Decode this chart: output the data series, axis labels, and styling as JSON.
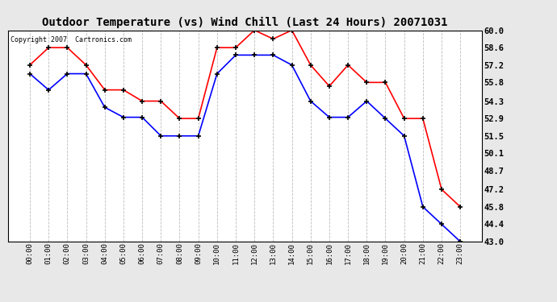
{
  "title": "Outdoor Temperature (vs) Wind Chill (Last 24 Hours) 20071031",
  "copyright_text": "Copyright 2007  Cartronics.com",
  "hours": [
    "00:00",
    "01:00",
    "02:00",
    "03:00",
    "04:00",
    "05:00",
    "06:00",
    "07:00",
    "08:00",
    "09:00",
    "10:00",
    "11:00",
    "12:00",
    "13:00",
    "14:00",
    "15:00",
    "16:00",
    "17:00",
    "18:00",
    "19:00",
    "20:00",
    "21:00",
    "22:00",
    "23:00"
  ],
  "outdoor_temp": [
    56.5,
    55.2,
    56.5,
    56.5,
    53.8,
    53.0,
    53.0,
    51.5,
    51.5,
    51.5,
    56.5,
    58.0,
    58.0,
    58.0,
    57.2,
    54.3,
    53.0,
    53.0,
    54.3,
    52.9,
    51.5,
    45.8,
    44.4,
    43.0
  ],
  "wind_chill": [
    57.2,
    58.6,
    58.6,
    57.2,
    55.2,
    55.2,
    54.3,
    54.3,
    52.9,
    52.9,
    58.6,
    58.6,
    60.0,
    59.3,
    60.0,
    57.2,
    55.5,
    57.2,
    55.8,
    55.8,
    52.9,
    52.9,
    47.2,
    45.8
  ],
  "temp_color": "#0000ff",
  "chill_color": "#ff0000",
  "bg_color": "#e8e8e8",
  "plot_bg_color": "#ffffff",
  "grid_color": "#bbbbbb",
  "title_fontsize": 10,
  "ylabel_right_ticks": [
    43.0,
    44.4,
    45.8,
    47.2,
    48.7,
    50.1,
    51.5,
    52.9,
    54.3,
    55.8,
    57.2,
    58.6,
    60.0
  ],
  "ylim": [
    43.0,
    60.0
  ],
  "figwidth": 6.9,
  "figheight": 3.75,
  "dpi": 100
}
